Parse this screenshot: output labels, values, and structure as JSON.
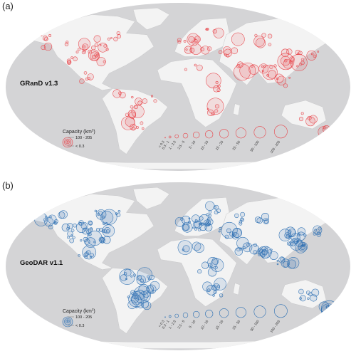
{
  "panels": [
    {
      "letter": "(a)",
      "dataset": "GRanD v1.3",
      "color": "#e8474c",
      "fill": "rgba(232,71,76,0.13)",
      "legend": {
        "title_base": "Capacity (km",
        "title_sup": "3",
        "title_end": ")",
        "max_label": "100 - 205",
        "min_label": "< 0.3"
      }
    },
    {
      "letter": "(b)",
      "dataset": "GeoDAR v1.1",
      "color": "#2b6fb3",
      "fill": "rgba(43,111,179,0.13)",
      "legend": {
        "title_base": "Capacity (km",
        "title_sup": "3",
        "title_end": ")",
        "max_label": "100 - 205",
        "min_label": "< 0.3"
      }
    }
  ],
  "size_classes": [
    "< 0.3",
    "0.3 - 1",
    "1 - 2.5",
    "2.5 - 5",
    "5 - 10",
    "10 - 15",
    "15 - 25",
    "25 - 50",
    "50 - 100",
    "100 - 205"
  ],
  "colors": {
    "ocean": "#d4d4d6",
    "land": "#f3f3f3",
    "background": "#ffffff"
  }
}
